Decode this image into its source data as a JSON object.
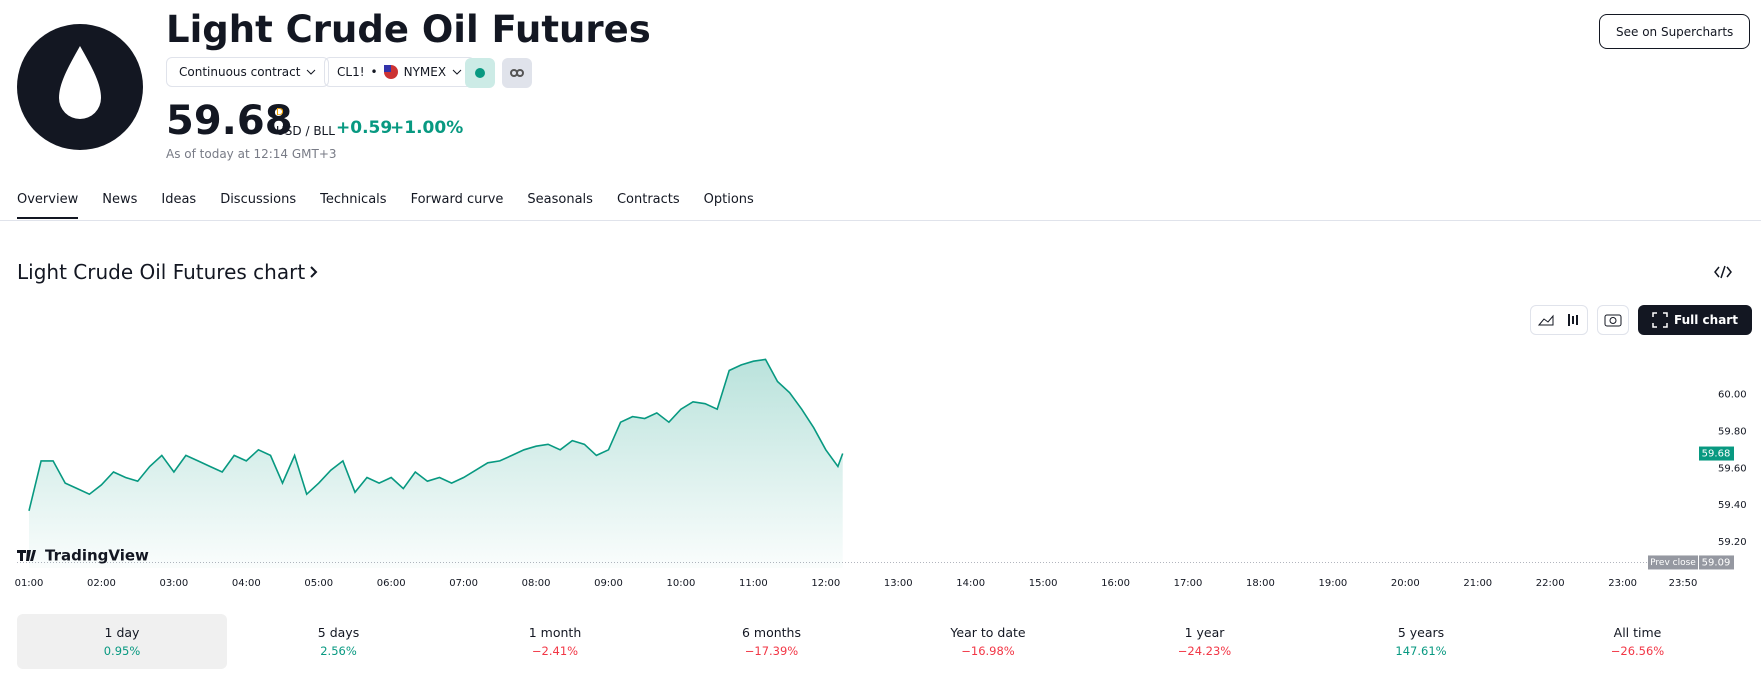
{
  "header": {
    "title": "Light Crude Oil Futures",
    "contract_button": "Continuous contract",
    "symbol": "CL1!",
    "exchange": "NYMEX",
    "price": "59.68",
    "price_flag": "D",
    "currency": "USD / BLL",
    "change": "+0.59",
    "change_percent": "+1.00%",
    "timestamp": "As of today at 12:14 GMT+3",
    "supercharts_button": "See on Supercharts"
  },
  "tabs": [
    "Overview",
    "News",
    "Ideas",
    "Discussions",
    "Technicals",
    "Forward curve",
    "Seasonals",
    "Contracts",
    "Options"
  ],
  "chart_heading": "Light Crude Oil Futures chart",
  "full_chart_button": "Full chart",
  "chart_data": {
    "type": "line",
    "color": "#089981",
    "watermark": "TradingView",
    "x": [
      "01:00",
      "01:10",
      "01:20",
      "01:30",
      "01:40",
      "01:50",
      "02:00",
      "02:10",
      "02:20",
      "02:30",
      "02:40",
      "02:50",
      "03:00",
      "03:10",
      "03:20",
      "03:30",
      "03:40",
      "03:50",
      "04:00",
      "04:10",
      "04:20",
      "04:30",
      "04:40",
      "04:50",
      "05:00",
      "05:10",
      "05:20",
      "05:30",
      "05:40",
      "05:50",
      "06:00",
      "06:10",
      "06:20",
      "06:30",
      "06:40",
      "06:50",
      "07:00",
      "07:10",
      "07:20",
      "07:30",
      "07:40",
      "07:50",
      "08:00",
      "08:10",
      "08:20",
      "08:30",
      "08:40",
      "08:50",
      "09:00",
      "09:10",
      "09:20",
      "09:30",
      "09:40",
      "09:50",
      "10:00",
      "10:10",
      "10:20",
      "10:30",
      "10:40",
      "10:50",
      "11:00",
      "11:10",
      "11:20",
      "11:30",
      "11:40",
      "11:50",
      "12:00",
      "12:10",
      "12:14"
    ],
    "values": [
      59.37,
      59.64,
      59.64,
      59.52,
      59.49,
      59.46,
      59.51,
      59.58,
      59.55,
      59.53,
      59.61,
      59.67,
      59.58,
      59.67,
      59.64,
      59.61,
      59.58,
      59.67,
      59.64,
      59.7,
      59.67,
      59.52,
      59.67,
      59.46,
      59.52,
      59.59,
      59.64,
      59.47,
      59.55,
      59.52,
      59.55,
      59.49,
      59.58,
      59.53,
      59.55,
      59.52,
      59.55,
      59.59,
      59.63,
      59.64,
      59.67,
      59.7,
      59.72,
      59.73,
      59.7,
      59.75,
      59.73,
      59.67,
      59.7,
      59.85,
      59.88,
      59.87,
      59.9,
      59.85,
      59.92,
      59.96,
      59.95,
      59.92,
      60.13,
      60.16,
      60.18,
      60.19,
      60.07,
      60.01,
      59.92,
      59.82,
      59.7,
      59.61,
      59.68
    ],
    "xlim": [
      "01:00",
      "23:50"
    ],
    "xticks": [
      "01:00",
      "02:00",
      "03:00",
      "04:00",
      "05:00",
      "06:00",
      "07:00",
      "08:00",
      "09:00",
      "10:00",
      "11:00",
      "12:00",
      "13:00",
      "14:00",
      "15:00",
      "16:00",
      "17:00",
      "18:00",
      "19:00",
      "20:00",
      "21:00",
      "22:00",
      "23:00",
      "23:50"
    ],
    "ylim": [
      59.06,
      60.36
    ],
    "yticks": [
      {
        "value": 59.2,
        "label": "59.20"
      },
      {
        "value": 59.4,
        "label": "59.40"
      },
      {
        "value": 59.6,
        "label": "59.60"
      },
      {
        "value": 59.8,
        "label": "59.80"
      },
      {
        "value": 60,
        "label": "60.00"
      }
    ],
    "prev_close_label": "Prev close",
    "prev_close": 59.09
  },
  "periods": [
    {
      "label": "1 day",
      "change": "0.95%"
    },
    {
      "label": "5 days",
      "change": "2.56%"
    },
    {
      "label": "1 month",
      "change": "−2.41%"
    },
    {
      "label": "6 months",
      "change": "−17.39%"
    },
    {
      "label": "Year to date",
      "change": "−16.98%"
    },
    {
      "label": "1 year",
      "change": "−24.23%"
    },
    {
      "label": "5 years",
      "change": "147.61%"
    },
    {
      "label": "All time",
      "change": "−26.56%"
    }
  ]
}
